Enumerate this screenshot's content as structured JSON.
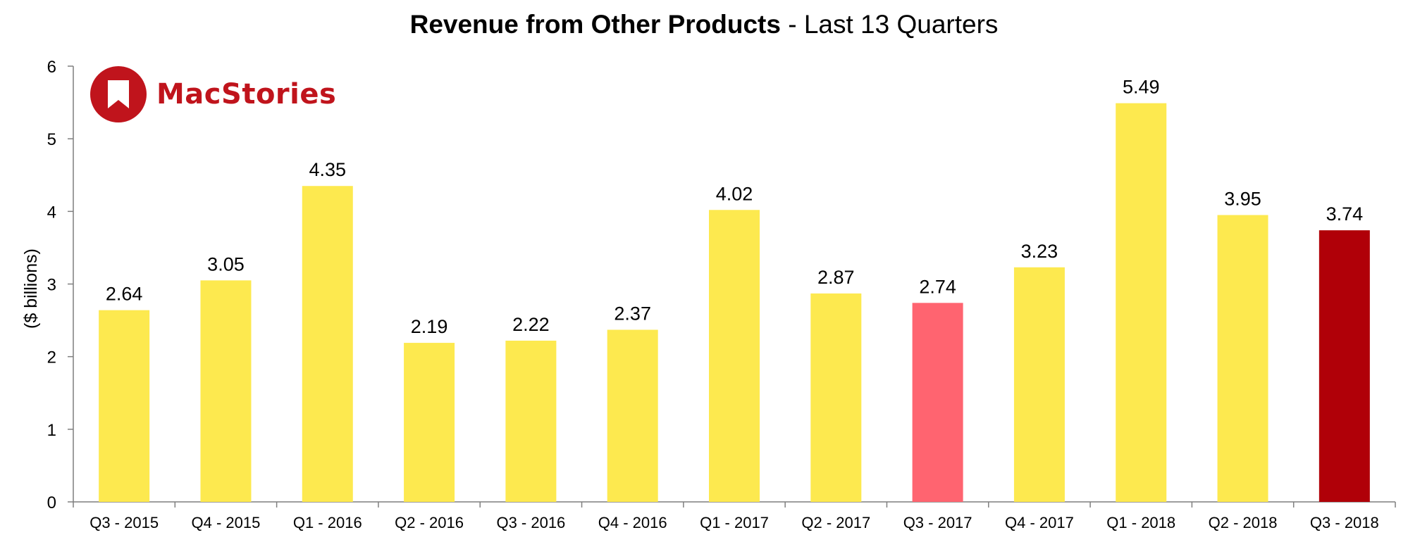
{
  "chart_data": {
    "type": "bar",
    "title_bold": "Revenue from Other Products",
    "title_rest": " - Last 13 Quarters",
    "ylabel": "($ billions)",
    "xlabel": "",
    "ylim": [
      0,
      6
    ],
    "yticks": [
      0,
      1,
      2,
      3,
      4,
      5,
      6
    ],
    "grid": false,
    "categories": [
      "Q3 - 2015",
      "Q4 - 2015",
      "Q1 - 2016",
      "Q2 - 2016",
      "Q3 - 2016",
      "Q4 - 2016",
      "Q1 - 2017",
      "Q2 - 2017",
      "Q3 - 2017",
      "Q4 - 2017",
      "Q1 - 2018",
      "Q2 - 2018",
      "Q3 - 2018"
    ],
    "values": [
      2.64,
      3.05,
      4.35,
      2.19,
      2.22,
      2.37,
      4.02,
      2.87,
      2.74,
      3.23,
      5.49,
      3.95,
      3.74
    ],
    "value_labels": [
      "2.64",
      "3.05",
      "4.35",
      "2.19",
      "2.22",
      "2.37",
      "4.02",
      "2.87",
      "2.74",
      "3.23",
      "5.49",
      "3.95",
      "3.74"
    ],
    "colors": [
      "#fde94f",
      "#fde94f",
      "#fde94f",
      "#fde94f",
      "#fde94f",
      "#fde94f",
      "#fde94f",
      "#fde94f",
      "#ff6470",
      "#fde94f",
      "#fde94f",
      "#fde94f",
      "#b00008"
    ]
  },
  "logo": {
    "text": "MacStories",
    "color": "#c0141c",
    "icon": "bookmark-icon"
  }
}
